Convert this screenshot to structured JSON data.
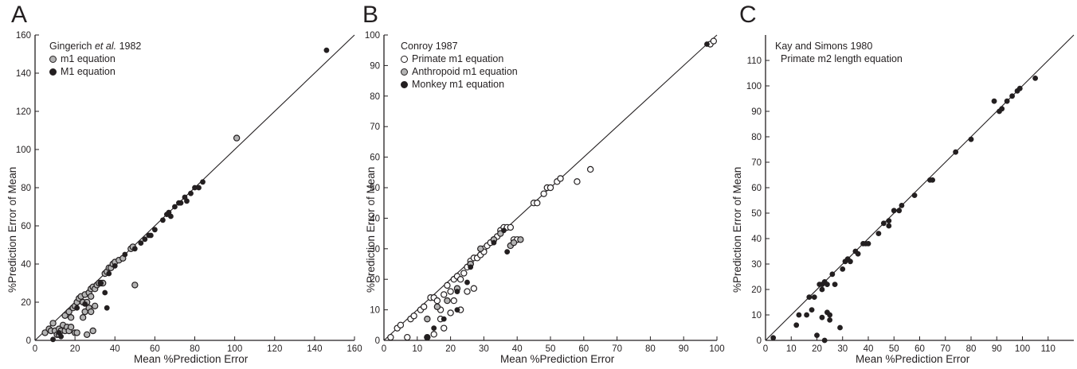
{
  "colors": {
    "ink": "#231f20",
    "grey_marker": "#b3b3b3",
    "white_marker": "#ffffff"
  },
  "chart_data": [
    {
      "type": "scatter",
      "panel_letter": "A",
      "legend_title_pre": "Gingerich ",
      "legend_title_ital": "et al.",
      "legend_title_post": " 1982",
      "xlabel": "Mean %Prediction Error",
      "ylabel": "%Prediction Error of Mean",
      "xlim": [
        0,
        160
      ],
      "ylim": [
        0,
        160
      ],
      "xticks": [
        0,
        20,
        40,
        60,
        80,
        100,
        120,
        140,
        160
      ],
      "yticks": [
        0,
        20,
        40,
        60,
        80,
        100,
        120,
        140,
        160
      ],
      "identity_line": true,
      "legend_position": "top-left",
      "series": [
        {
          "name": "m1 equation",
          "marker": "grey",
          "points": [
            [
              5,
              4
            ],
            [
              7,
              6
            ],
            [
              8,
              5
            ],
            [
              9,
              9
            ],
            [
              10,
              5
            ],
            [
              11,
              3
            ],
            [
              12,
              6
            ],
            [
              12,
              3
            ],
            [
              13,
              5
            ],
            [
              14,
              8
            ],
            [
              15,
              13
            ],
            [
              15,
              5
            ],
            [
              16,
              7
            ],
            [
              17,
              15
            ],
            [
              17,
              5
            ],
            [
              18,
              7
            ],
            [
              18,
              12
            ],
            [
              19,
              17
            ],
            [
              20,
              18
            ],
            [
              20,
              4
            ],
            [
              21,
              4
            ],
            [
              21,
              20
            ],
            [
              22,
              22
            ],
            [
              23,
              23
            ],
            [
              24,
              12
            ],
            [
              24,
              20
            ],
            [
              25,
              24
            ],
            [
              25,
              15
            ],
            [
              26,
              3
            ],
            [
              26,
              20
            ],
            [
              27,
              25
            ],
            [
              27,
              17
            ],
            [
              28,
              23
            ],
            [
              28,
              27
            ],
            [
              28,
              15
            ],
            [
              29,
              5
            ],
            [
              29,
              28
            ],
            [
              30,
              18
            ],
            [
              30,
              27
            ],
            [
              31,
              29
            ],
            [
              32,
              30
            ],
            [
              33,
              30
            ],
            [
              34,
              30
            ],
            [
              35,
              35
            ],
            [
              36,
              36
            ],
            [
              37,
              38
            ],
            [
              38,
              38
            ],
            [
              39,
              40
            ],
            [
              40,
              41
            ],
            [
              42,
              42
            ],
            [
              44,
              43
            ],
            [
              48,
              48
            ],
            [
              49,
              49
            ],
            [
              50,
              29
            ],
            [
              101,
              106
            ]
          ]
        },
        {
          "name": "M1 equation",
          "marker": "black",
          "points": [
            [
              9,
              0.5
            ],
            [
              12,
              4
            ],
            [
              13,
              2
            ],
            [
              21,
              17
            ],
            [
              25,
              19
            ],
            [
              33,
              30
            ],
            [
              35,
              25
            ],
            [
              36,
              17
            ],
            [
              37,
              35
            ],
            [
              40,
              39
            ],
            [
              45,
              45
            ],
            [
              50,
              48
            ],
            [
              53,
              51
            ],
            [
              55,
              53
            ],
            [
              57,
              55
            ],
            [
              58,
              55
            ],
            [
              60,
              58
            ],
            [
              64,
              63
            ],
            [
              66,
              66
            ],
            [
              67,
              67
            ],
            [
              68,
              65
            ],
            [
              70,
              70
            ],
            [
              72,
              72
            ],
            [
              73,
              72
            ],
            [
              75,
              75
            ],
            [
              76,
              73
            ],
            [
              78,
              77
            ],
            [
              80,
              80
            ],
            [
              82,
              80
            ],
            [
              84,
              83
            ],
            [
              146,
              152
            ]
          ]
        }
      ]
    },
    {
      "type": "scatter",
      "panel_letter": "B",
      "legend_title": "Conroy 1987",
      "xlabel": "Mean %Prediction Error",
      "ylabel": "%Prediction Error of Mean",
      "xlim": [
        0,
        100
      ],
      "ylim": [
        0,
        100
      ],
      "xticks": [
        0,
        10,
        20,
        30,
        40,
        50,
        60,
        70,
        80,
        90,
        100
      ],
      "yticks": [
        0,
        10,
        20,
        30,
        40,
        50,
        60,
        70,
        80,
        90,
        100
      ],
      "identity_line": true,
      "legend_position": "top-left",
      "series": [
        {
          "name": "Primate m1 equation",
          "marker": "white",
          "points": [
            [
              2,
              1
            ],
            [
              4,
              4
            ],
            [
              5,
              5
            ],
            [
              7,
              1
            ],
            [
              8,
              7
            ],
            [
              9,
              8
            ],
            [
              11,
              10
            ],
            [
              12,
              11
            ],
            [
              13,
              1
            ],
            [
              14,
              14
            ],
            [
              15,
              14
            ],
            [
              15,
              2
            ],
            [
              16,
              13
            ],
            [
              17,
              10
            ],
            [
              17,
              7
            ],
            [
              18,
              4
            ],
            [
              18,
              15
            ],
            [
              19,
              18
            ],
            [
              20,
              16
            ],
            [
              20,
              9
            ],
            [
              21,
              20
            ],
            [
              21,
              13
            ],
            [
              22,
              21
            ],
            [
              23,
              20
            ],
            [
              23,
              10
            ],
            [
              24,
              22
            ],
            [
              25,
              24
            ],
            [
              25,
              16
            ],
            [
              26,
              25
            ],
            [
              26,
              26
            ],
            [
              27,
              27
            ],
            [
              27,
              17
            ],
            [
              28,
              27
            ],
            [
              29,
              28
            ],
            [
              30,
              30
            ],
            [
              30,
              29
            ],
            [
              31,
              31
            ],
            [
              32,
              32
            ],
            [
              33,
              33
            ],
            [
              34,
              34
            ],
            [
              35,
              36
            ],
            [
              36,
              37
            ],
            [
              37,
              37
            ],
            [
              38,
              37
            ],
            [
              39,
              33
            ],
            [
              40,
              33
            ],
            [
              45,
              45
            ],
            [
              46,
              45
            ],
            [
              48,
              48
            ],
            [
              49,
              50
            ],
            [
              50,
              50
            ],
            [
              52,
              52
            ],
            [
              53,
              53
            ],
            [
              58,
              52
            ],
            [
              62,
              56
            ],
            [
              98,
              97
            ],
            [
              99,
              98
            ]
          ]
        },
        {
          "name": "Anthropoid m1 equation",
          "marker": "grey",
          "points": [
            [
              13,
              7
            ],
            [
              16,
              11
            ],
            [
              19,
              13
            ],
            [
              22,
              17
            ],
            [
              26,
              25
            ],
            [
              29,
              30
            ],
            [
              33,
              33
            ],
            [
              35,
              35
            ],
            [
              38,
              31
            ],
            [
              39,
              32
            ],
            [
              41,
              33
            ]
          ]
        },
        {
          "name": "Monkey m1 equation",
          "marker": "black",
          "points": [
            [
              13,
              1
            ],
            [
              15,
              4
            ],
            [
              18,
              7
            ],
            [
              22,
              16
            ],
            [
              22,
              10
            ],
            [
              25,
              19
            ],
            [
              26,
              24
            ],
            [
              33,
              32
            ],
            [
              36,
              36
            ],
            [
              37,
              29
            ],
            [
              97,
              97
            ]
          ]
        }
      ]
    },
    {
      "type": "scatter",
      "panel_letter": "C",
      "legend_title": "Kay and Simons 1980",
      "legend_subtitle": "Primate m2 length equation",
      "xlabel": "Mean %Prediction Error",
      "ylabel": "%Prediction Error of Mean",
      "xlim": [
        0,
        120
      ],
      "ylim": [
        0,
        120
      ],
      "xticks": [
        0,
        10,
        20,
        30,
        40,
        50,
        60,
        70,
        80,
        90,
        100,
        110
      ],
      "yticks": [
        0,
        10,
        20,
        30,
        40,
        50,
        60,
        70,
        80,
        90,
        100,
        110
      ],
      "identity_line": true,
      "legend_position": "top-left",
      "series": [
        {
          "name": "",
          "marker": "black",
          "points": [
            [
              3,
              1
            ],
            [
              12,
              6
            ],
            [
              13,
              10
            ],
            [
              16,
              10
            ],
            [
              17,
              17
            ],
            [
              18,
              12
            ],
            [
              19,
              17
            ],
            [
              20,
              2
            ],
            [
              21,
              22
            ],
            [
              22,
              20
            ],
            [
              22,
              22
            ],
            [
              22,
              9
            ],
            [
              23,
              0
            ],
            [
              23,
              23
            ],
            [
              24,
              11
            ],
            [
              24,
              22
            ],
            [
              25,
              10
            ],
            [
              25,
              8
            ],
            [
              26,
              26
            ],
            [
              27,
              22
            ],
            [
              29,
              5
            ],
            [
              30,
              28
            ],
            [
              31,
              31
            ],
            [
              32,
              32
            ],
            [
              33,
              31
            ],
            [
              35,
              35
            ],
            [
              36,
              34
            ],
            [
              38,
              38
            ],
            [
              39,
              38
            ],
            [
              40,
              38
            ],
            [
              44,
              42
            ],
            [
              46,
              46
            ],
            [
              48,
              45
            ],
            [
              48,
              47
            ],
            [
              50,
              51
            ],
            [
              52,
              51
            ],
            [
              53,
              53
            ],
            [
              58,
              57
            ],
            [
              64,
              63
            ],
            [
              65,
              63
            ],
            [
              74,
              74
            ],
            [
              80,
              79
            ],
            [
              89,
              94
            ],
            [
              91,
              90
            ],
            [
              92,
              91
            ],
            [
              94,
              94
            ],
            [
              96,
              96
            ],
            [
              98,
              98
            ],
            [
              99,
              99
            ],
            [
              105,
              103
            ]
          ]
        }
      ]
    }
  ]
}
